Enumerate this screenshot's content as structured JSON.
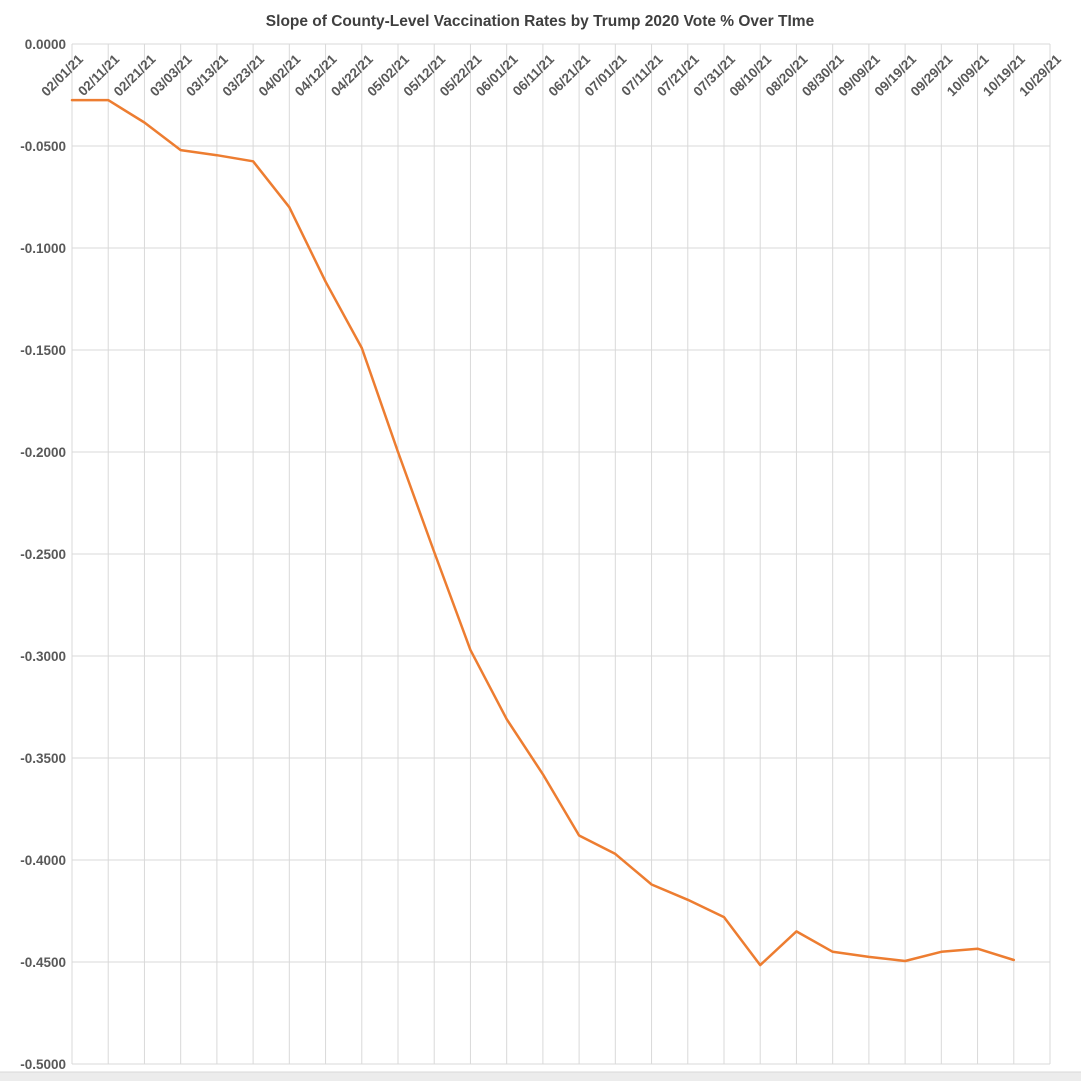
{
  "title": "Slope of County-Level Vaccination Rates by Trump 2020 Vote % Over TIme",
  "colors": {
    "line": "#ED7D31",
    "gridline": "#D9D9D9",
    "axis_label": "#595959",
    "title": "#3F3F3F",
    "plot_background": "#FFFFFF",
    "bottom_strip_fill": "#ECECEC",
    "bottom_strip_edge": "#D9D9D9"
  },
  "chart_data": {
    "type": "line",
    "title": "Slope of County-Level Vaccination Rates by Trump 2020 Vote % Over TIme",
    "xlabel": "",
    "ylabel": "",
    "ylim": [
      -0.5,
      0
    ],
    "ytick_step": 0.05,
    "ytick_labels": [
      "0.0000",
      "-0.0500",
      "-0.1000",
      "-0.1500",
      "-0.2000",
      "-0.2500",
      "-0.3000",
      "-0.3500",
      "-0.4000",
      "-0.4500",
      "-0.5000"
    ],
    "grid": true,
    "legend_position": "none",
    "x_label_rotation_deg": 45,
    "categories": [
      "02/01/21",
      "02/11/21",
      "02/21/21",
      "03/03/21",
      "03/13/21",
      "03/23/21",
      "04/02/21",
      "04/12/21",
      "04/22/21",
      "05/02/21",
      "05/12/21",
      "05/22/21",
      "06/01/21",
      "06/11/21",
      "06/21/21",
      "07/01/21",
      "07/11/21",
      "07/21/21",
      "07/31/21",
      "08/10/21",
      "08/20/21",
      "08/30/21",
      "09/09/21",
      "09/19/21",
      "09/29/21",
      "10/09/21",
      "10/19/21",
      "10/29/21"
    ],
    "series": [
      {
        "name": "Slope of county-level vaccination rates by Trump 2020 vote %",
        "color": "#ED7D31",
        "values": [
          -0.0275,
          -0.0275,
          -0.0385,
          -0.052,
          -0.0545,
          -0.0575,
          -0.08,
          -0.1165,
          -0.149,
          -0.2,
          -0.249,
          -0.297,
          -0.331,
          -0.358,
          -0.388,
          -0.397,
          -0.412,
          -0.4195,
          -0.428,
          -0.4515,
          -0.435,
          -0.445,
          -0.4475,
          -0.4495,
          -0.445,
          -0.4435,
          -0.449,
          null
        ]
      }
    ]
  },
  "layout_note_visible_elements": {
    "bottom_strip": ""
  }
}
